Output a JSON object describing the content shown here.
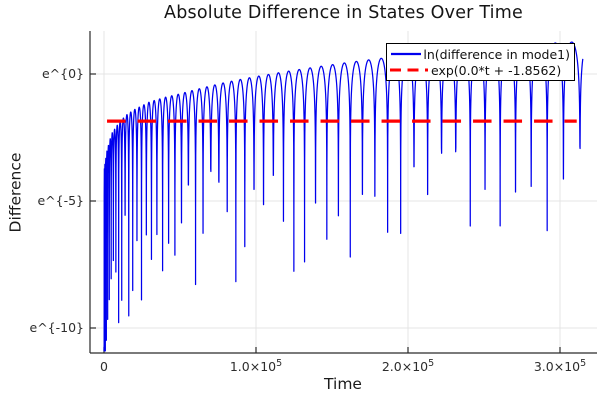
{
  "chart_data": {
    "type": "line",
    "title": "Absolute Difference in States Over Time",
    "xlabel": "Time",
    "ylabel": "Difference",
    "grid": true,
    "background": "#ffffff",
    "legend_position": "top-right",
    "x_ticks": [
      {
        "t": 0,
        "mantissa": "0",
        "exp": ""
      },
      {
        "t": 100000,
        "mantissa": "1.0×10",
        "exp": "5"
      },
      {
        "t": 200000,
        "mantissa": "2.0×10",
        "exp": "5"
      },
      {
        "t": 300000,
        "mantissa": "3.0×10",
        "exp": "5"
      }
    ],
    "y_ticks": [
      {
        "ln": 0,
        "label": "e^{0}"
      },
      {
        "ln": -5,
        "label": "e^{-5}"
      },
      {
        "ln": -10,
        "label": "e^{-10}"
      }
    ],
    "xlim": [
      -9000,
      324000
    ],
    "ylim_ln": [
      -11,
      1.7
    ],
    "colors": {
      "grid": "#e4e4e4",
      "axis": "#2a2a2a",
      "tick_text": "#2d2d2d"
    },
    "series": [
      {
        "name": "ln(difference in mode1)",
        "color": "#0000ee",
        "style": "solid",
        "shape": "chirped_log_oscillation",
        "t_end": 315000,
        "phase_k": 0.32,
        "floor_ln": -10.9,
        "envelope_t": [
          0,
          1000,
          2000,
          5000,
          10000,
          15000,
          20000,
          30000,
          40000,
          50000,
          60000,
          70000,
          80000,
          90000,
          100000,
          120000,
          140000,
          160000,
          180000,
          200000,
          220000,
          240000,
          260000,
          280000,
          300000,
          315000
        ],
        "envelope_ln": [
          -3.8,
          -3.4,
          -3.0,
          -2.35,
          -1.9,
          -1.6,
          -1.4,
          -1.1,
          -0.92,
          -0.78,
          -0.62,
          -0.47,
          -0.33,
          -0.21,
          -0.1,
          0.1,
          0.28,
          0.45,
          0.6,
          0.74,
          0.87,
          0.99,
          1.08,
          1.16,
          1.23,
          1.28
        ],
        "spike_depth_range_ln": [
          3,
          8
        ]
      },
      {
        "name": "exp(0.0*t + -1.8562)",
        "color": "#ff0000",
        "style": "dashed",
        "slope": 0.0,
        "intercept_ln": -1.8562,
        "t_start": 2000,
        "t_end": 311000
      }
    ]
  }
}
